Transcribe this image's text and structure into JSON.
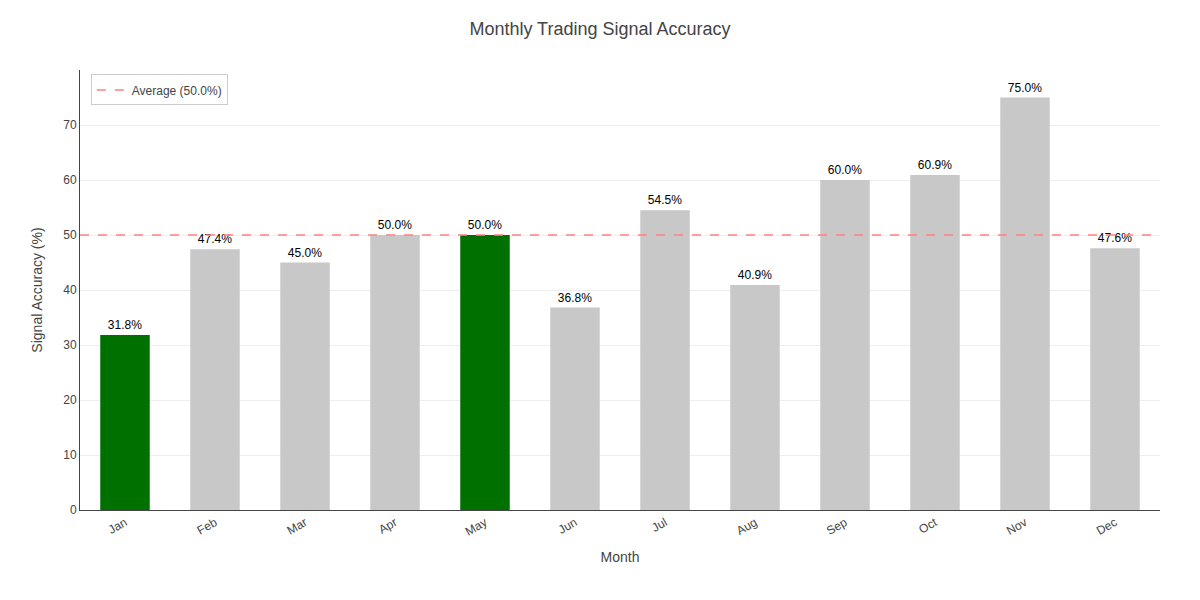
{
  "chart_data": {
    "type": "bar",
    "title": "Monthly Trading Signal Accuracy",
    "xlabel": "Month",
    "ylabel": "Signal Accuracy (%)",
    "categories": [
      "Jan",
      "Feb",
      "Mar",
      "Apr",
      "May",
      "Jun",
      "Jul",
      "Aug",
      "Sep",
      "Oct",
      "Nov",
      "Dec"
    ],
    "values": [
      31.8,
      47.4,
      45.0,
      50.0,
      50.0,
      36.8,
      54.5,
      40.9,
      60.0,
      60.9,
      75.0,
      47.6
    ],
    "value_labels": [
      "31.8%",
      "47.4%",
      "45.0%",
      "50.0%",
      "50.0%",
      "36.8%",
      "54.5%",
      "40.9%",
      "60.0%",
      "60.9%",
      "75.0%",
      "47.6%"
    ],
    "colors": [
      "#007000",
      "#C8C8C8",
      "#C8C8C8",
      "#C8C8C8",
      "#007000",
      "#C8C8C8",
      "#C8C8C8",
      "#C8C8C8",
      "#C8C8C8",
      "#C8C8C8",
      "#C8C8C8",
      "#C8C8C8"
    ],
    "data_labels": true,
    "reference_line": {
      "value": 50.0,
      "name": "Average (50.0%)",
      "color": "#FF8080",
      "line_style": "dashed"
    },
    "ylim": [
      0,
      80
    ],
    "yticks": [
      0,
      10,
      20,
      30,
      40,
      50,
      60,
      70
    ],
    "grid": true,
    "legend": "upper left"
  }
}
